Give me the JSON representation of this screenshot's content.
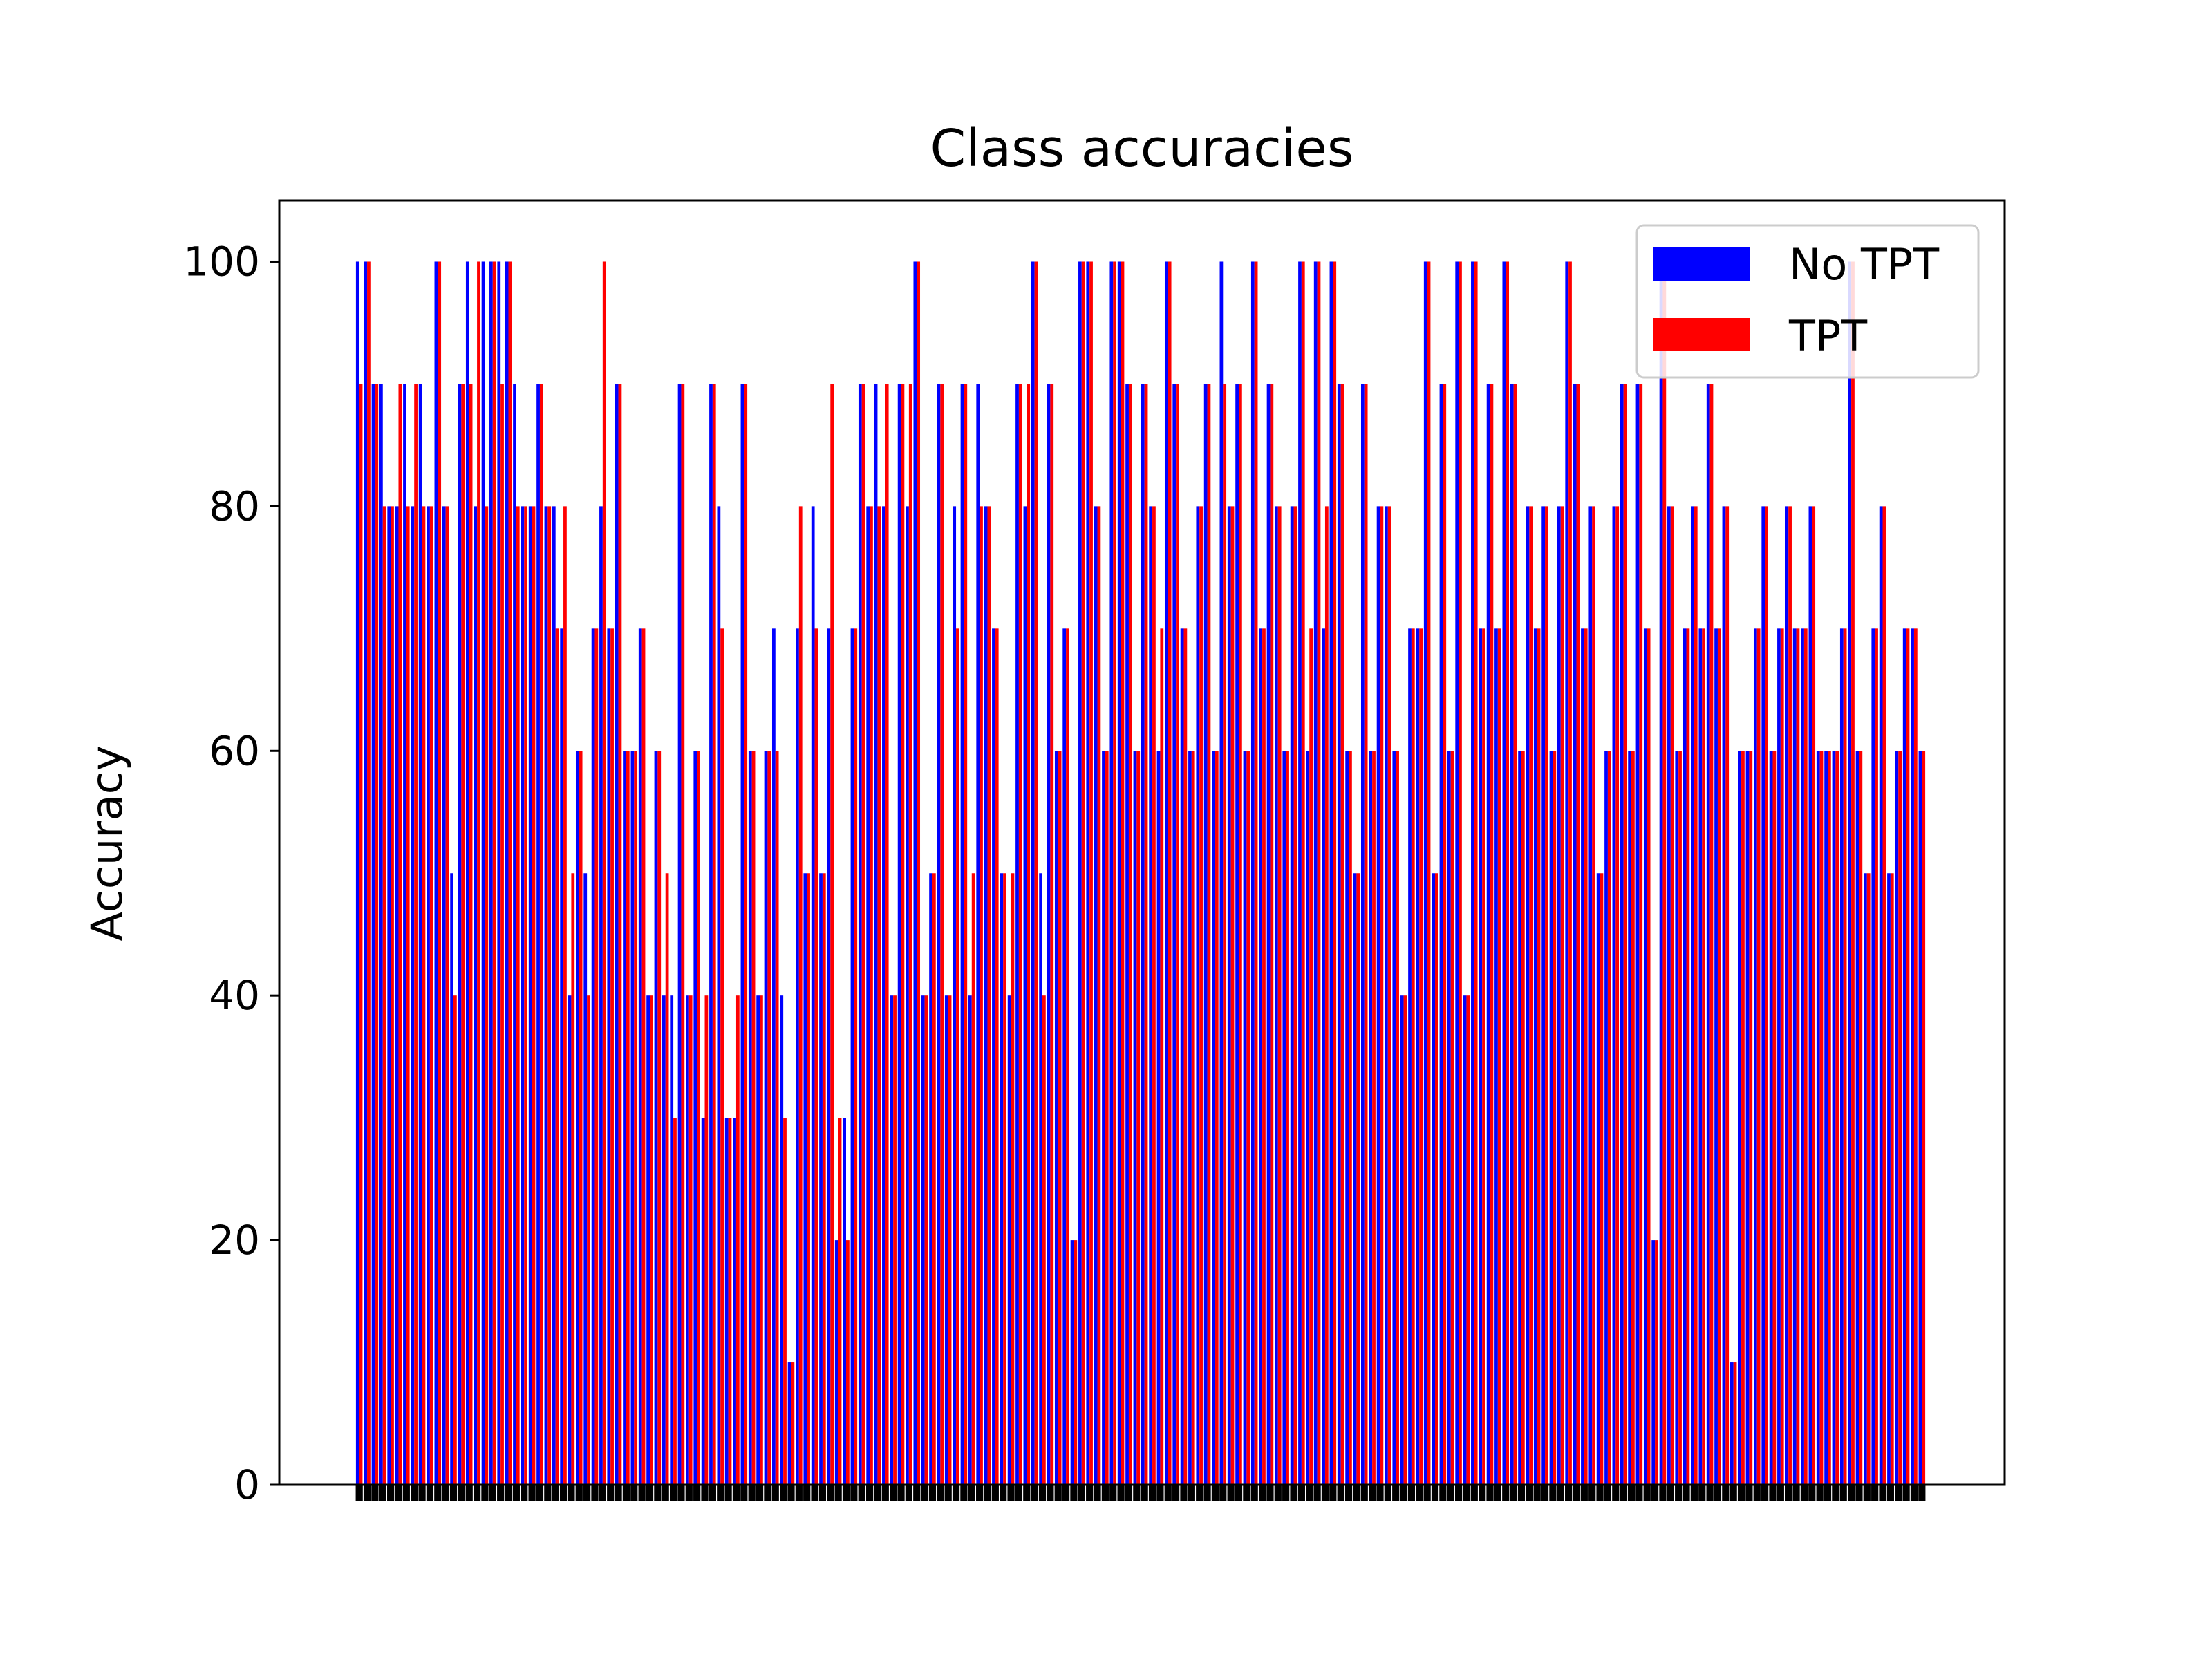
{
  "chart_data": {
    "type": "bar",
    "title": "Class accuracies",
    "xlabel": "",
    "ylabel": "Accuracy",
    "ylim": [
      0,
      105
    ],
    "yticks": [
      0,
      20,
      40,
      60,
      80,
      100
    ],
    "legend_position": "top-right",
    "grid": false,
    "bar_count": 200,
    "category_labels_legible": false,
    "series": [
      {
        "name": "No TPT",
        "color": "#0000ff",
        "values": [
          100,
          100,
          90,
          90,
          80,
          80,
          90,
          80,
          90,
          80,
          100,
          80,
          50,
          90,
          100,
          80,
          100,
          100,
          100,
          100,
          90,
          80,
          80,
          90,
          80,
          80,
          70,
          40,
          60,
          50,
          70,
          80,
          70,
          90,
          60,
          60,
          70,
          40,
          60,
          40,
          40,
          90,
          40,
          60,
          30,
          90,
          80,
          30,
          30,
          90,
          60,
          40,
          60,
          70,
          40,
          10,
          70,
          50,
          80,
          50,
          70,
          20,
          30,
          70,
          90,
          80,
          90,
          80,
          40,
          90,
          80,
          100,
          40,
          50,
          90,
          40,
          80,
          90,
          40,
          90,
          80,
          70,
          50,
          40,
          90,
          80,
          100,
          50,
          90,
          60,
          70,
          20,
          100,
          100,
          80,
          60,
          100,
          100,
          90,
          60,
          90,
          80,
          60,
          100,
          90,
          70,
          60,
          80,
          90,
          60,
          100,
          80,
          90,
          60,
          100,
          70,
          90,
          80,
          60,
          80,
          100,
          60,
          100,
          70,
          100,
          90,
          60,
          50,
          90,
          60,
          80,
          80,
          60,
          40,
          70,
          70,
          100,
          50,
          90,
          60,
          100,
          40,
          100,
          70,
          90,
          70,
          100,
          90,
          60,
          80,
          70,
          80,
          60,
          80,
          100,
          90,
          70,
          80,
          50,
          60,
          80,
          90,
          60,
          90,
          70,
          20,
          100,
          80,
          60,
          70,
          80,
          70,
          90,
          70,
          80,
          10,
          60,
          60,
          70,
          80,
          60,
          70,
          80,
          70,
          70,
          80,
          60,
          60,
          60,
          70,
          100,
          60,
          50,
          70,
          80,
          50,
          60,
          70,
          70,
          60
        ]
      },
      {
        "name": "TPT",
        "color": "#ff0000",
        "values": [
          90,
          100,
          90,
          80,
          80,
          90,
          80,
          90,
          80,
          80,
          100,
          80,
          40,
          90,
          90,
          100,
          80,
          100,
          90,
          100,
          80,
          80,
          80,
          90,
          80,
          70,
          80,
          50,
          60,
          40,
          70,
          100,
          70,
          90,
          60,
          60,
          70,
          40,
          60,
          50,
          30,
          90,
          40,
          60,
          40,
          90,
          70,
          30,
          40,
          90,
          60,
          40,
          60,
          60,
          30,
          10,
          80,
          50,
          70,
          50,
          90,
          30,
          20,
          70,
          90,
          80,
          80,
          90,
          40,
          90,
          90,
          100,
          40,
          50,
          90,
          40,
          70,
          90,
          50,
          80,
          80,
          70,
          50,
          50,
          90,
          90,
          100,
          40,
          90,
          60,
          70,
          20,
          100,
          100,
          80,
          60,
          100,
          100,
          90,
          60,
          90,
          80,
          70,
          100,
          90,
          70,
          60,
          80,
          90,
          60,
          90,
          80,
          90,
          60,
          100,
          70,
          90,
          80,
          60,
          80,
          100,
          70,
          100,
          80,
          100,
          90,
          60,
          50,
          90,
          60,
          80,
          80,
          60,
          40,
          70,
          70,
          100,
          50,
          90,
          60,
          100,
          40,
          100,
          70,
          90,
          70,
          100,
          90,
          60,
          80,
          70,
          80,
          60,
          80,
          100,
          90,
          70,
          80,
          50,
          60,
          80,
          90,
          60,
          90,
          70,
          20,
          100,
          80,
          60,
          70,
          80,
          70,
          90,
          70,
          80,
          10,
          60,
          60,
          70,
          80,
          60,
          70,
          80,
          70,
          70,
          80,
          60,
          60,
          60,
          70,
          100,
          60,
          50,
          70,
          80,
          50,
          60,
          70,
          70,
          60
        ]
      }
    ]
  }
}
